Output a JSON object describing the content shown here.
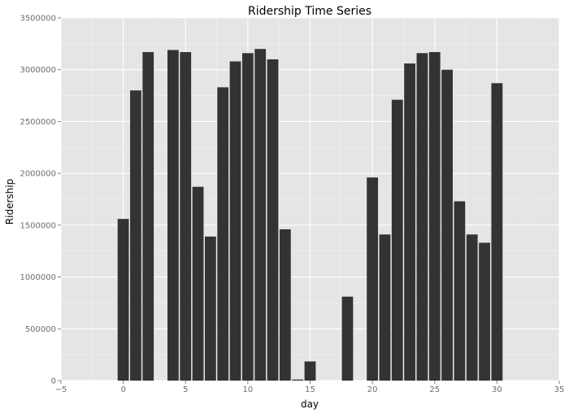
{
  "chart_data": {
    "type": "bar",
    "title": "Ridership Time Series",
    "xlabel": "day",
    "ylabel": "Ridership",
    "xlim": [
      -5,
      35
    ],
    "ylim": [
      0,
      3500000
    ],
    "x_ticks": [
      "−5",
      "0",
      "5",
      "10",
      "15",
      "20",
      "25",
      "30",
      "35"
    ],
    "y_ticks": [
      "0",
      "500000",
      "1000000",
      "1500000",
      "2000000",
      "2500000",
      "3000000",
      "3500000"
    ],
    "grid": true,
    "bar_color": "#333333",
    "panel_color": "#e5e5e5",
    "gridline_color": "#ffffff",
    "x": [
      0,
      1,
      2,
      4,
      5,
      6,
      7,
      8,
      9,
      10,
      11,
      12,
      13,
      14,
      15,
      18,
      20,
      21,
      22,
      23,
      24,
      25,
      26,
      27,
      28,
      29,
      30
    ],
    "values": [
      1560000,
      2800000,
      3170000,
      3190000,
      3170000,
      1870000,
      1390000,
      2830000,
      3080000,
      3160000,
      3200000,
      3100000,
      1460000,
      10000,
      185000,
      810000,
      1960000,
      1410000,
      2710000,
      3060000,
      3160000,
      3170000,
      3000000,
      1730000,
      1410000,
      1330000,
      2870000
    ]
  }
}
